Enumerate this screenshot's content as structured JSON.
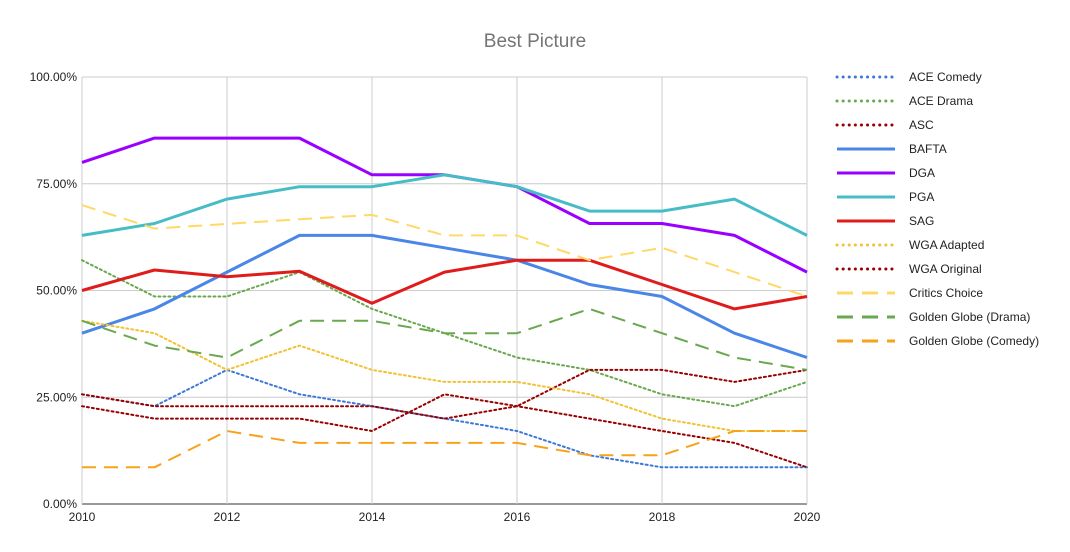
{
  "chart_data": {
    "type": "line",
    "title": "Best Picture",
    "xlabel": "",
    "ylabel": "",
    "x": [
      2010,
      2011,
      2012,
      2013,
      2014,
      2015,
      2016,
      2017,
      2018,
      2019,
      2020
    ],
    "x_ticks": [
      "2010",
      "2012",
      "2014",
      "2016",
      "2018",
      "2020"
    ],
    "y_ticks": [
      "0.00%",
      "25.00%",
      "50.00%",
      "75.00%",
      "100.00%"
    ],
    "xlim": [
      2010,
      2020
    ],
    "ylim": [
      0,
      100
    ],
    "grid": true,
    "legend_position": "right",
    "series": [
      {
        "name": "ACE Comedy",
        "color": "#3c78d8",
        "style": "dotted",
        "values": [
          25.7,
          22.9,
          31.4,
          25.7,
          22.9,
          20.0,
          17.1,
          11.4,
          8.6,
          8.6,
          8.6
        ]
      },
      {
        "name": "ACE Drama",
        "color": "#6aa84f",
        "style": "dotted",
        "values": [
          57.1,
          48.6,
          48.6,
          54.3,
          45.7,
          40.0,
          34.3,
          31.4,
          25.7,
          22.9,
          28.6
        ]
      },
      {
        "name": "ASC",
        "color": "#990000",
        "style": "dotted",
        "values": [
          25.7,
          22.9,
          22.9,
          22.9,
          22.9,
          20.0,
          22.9,
          31.4,
          31.4,
          28.6,
          31.4
        ]
      },
      {
        "name": "BAFTA",
        "color": "#4a86e8",
        "style": "solid",
        "values": [
          40.0,
          45.7,
          54.3,
          62.9,
          62.9,
          60.0,
          57.1,
          51.4,
          48.6,
          40.0,
          34.3
        ]
      },
      {
        "name": "DGA",
        "color": "#9900ff",
        "style": "solid",
        "values": [
          80.0,
          85.7,
          85.7,
          85.7,
          77.1,
          77.1,
          74.3,
          65.7,
          65.7,
          62.9,
          54.3
        ]
      },
      {
        "name": "PGA",
        "color": "#46bdc6",
        "style": "solid",
        "values": [
          62.9,
          65.7,
          71.4,
          74.3,
          74.3,
          77.1,
          74.3,
          68.6,
          68.6,
          71.4,
          62.9
        ]
      },
      {
        "name": "SAG",
        "color": "#e01b1b",
        "style": "solid",
        "values": [
          50.0,
          54.8,
          53.2,
          54.5,
          47.0,
          54.3,
          57.1,
          57.1,
          51.4,
          45.7,
          48.6
        ]
      },
      {
        "name": "WGA Adapted",
        "color": "#f1c232",
        "style": "dotted",
        "values": [
          42.9,
          40.0,
          31.4,
          37.1,
          31.4,
          28.6,
          28.6,
          25.7,
          20.0,
          17.1,
          17.1
        ]
      },
      {
        "name": "WGA Original",
        "color": "#990000",
        "style": "dotted",
        "values": [
          22.9,
          20.0,
          20.0,
          20.0,
          17.1,
          25.7,
          22.9,
          20.0,
          17.1,
          14.3,
          8.6
        ]
      },
      {
        "name": "Critics Choice",
        "color": "#ffd966",
        "style": "dashed",
        "values": [
          70.0,
          64.5,
          65.6,
          66.7,
          67.7,
          62.9,
          62.9,
          57.1,
          60.0,
          54.3,
          48.6
        ]
      },
      {
        "name": "Golden Globe (Drama)",
        "color": "#6aa84f",
        "style": "dashed",
        "values": [
          42.9,
          37.1,
          34.3,
          42.9,
          42.9,
          40.0,
          40.0,
          45.7,
          40.0,
          34.3,
          31.4
        ]
      },
      {
        "name": "Golden Globe (Comedy)",
        "color": "#f6a31a",
        "style": "dashed",
        "values": [
          8.6,
          8.6,
          17.1,
          14.3,
          14.3,
          14.3,
          14.3,
          11.4,
          11.4,
          17.1,
          17.1
        ]
      }
    ]
  }
}
